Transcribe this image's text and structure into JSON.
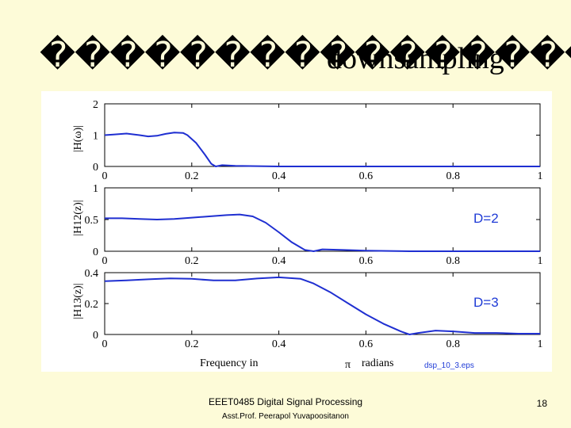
{
  "slide": {
    "title_garbled": "����������������",
    "title_word": "downsampling",
    "footer_course": "EEET0485 Digital Signal Processing",
    "footer_author": "Asst.Prof. Peerapol Yuvapoositanon",
    "page_number": "18",
    "figure_filename": "dsp_10_3.eps"
  },
  "chart_data": [
    {
      "type": "line",
      "panel": "top",
      "ylabel": "|H(ω)|",
      "ylim": [
        0,
        2
      ],
      "yticks": [
        "2",
        "1",
        "0"
      ],
      "xlim": [
        0,
        1
      ],
      "xticks": [
        "0",
        "0.2",
        "0.4",
        "0.6",
        "0.8",
        "1"
      ],
      "x": [
        0,
        0.02,
        0.05,
        0.08,
        0.1,
        0.12,
        0.14,
        0.16,
        0.18,
        0.19,
        0.21,
        0.23,
        0.245,
        0.255,
        0.27,
        0.3,
        0.35,
        0.4,
        0.5,
        0.6,
        0.7,
        0.8,
        0.9,
        1.0
      ],
      "y": [
        1.0,
        1.02,
        1.05,
        1.0,
        0.96,
        0.98,
        1.04,
        1.08,
        1.07,
        1.0,
        0.75,
        0.38,
        0.08,
        0.0,
        0.04,
        0.02,
        0.01,
        0.0,
        0.0,
        0.0,
        0.0,
        0.0,
        0.0,
        0.0
      ]
    },
    {
      "type": "line",
      "panel": "middle",
      "ylabel": "|H12(z)|",
      "ylim": [
        0,
        1
      ],
      "yticks": [
        "1",
        "0.5",
        "0"
      ],
      "xlim": [
        0,
        1
      ],
      "xticks": [
        "0",
        "0.2",
        "0.4",
        "0.6",
        "0.8",
        "1"
      ],
      "annotation": "D=2",
      "x": [
        0,
        0.04,
        0.08,
        0.12,
        0.16,
        0.2,
        0.24,
        0.28,
        0.31,
        0.34,
        0.37,
        0.4,
        0.43,
        0.46,
        0.48,
        0.5,
        0.55,
        0.6,
        0.7,
        0.8,
        0.9,
        1.0
      ],
      "y": [
        0.52,
        0.52,
        0.51,
        0.5,
        0.51,
        0.53,
        0.55,
        0.57,
        0.58,
        0.55,
        0.45,
        0.3,
        0.14,
        0.02,
        0.0,
        0.03,
        0.02,
        0.01,
        0.0,
        0.0,
        0.0,
        0.0
      ]
    },
    {
      "type": "line",
      "panel": "bottom",
      "ylabel": "|H13(z)|",
      "ylim": [
        0,
        0.4
      ],
      "yticks": [
        "0.4",
        "0.2",
        "0"
      ],
      "xlim": [
        0,
        1
      ],
      "xticks": [
        "0",
        "0.2",
        "0.4",
        "0.6",
        "0.8",
        "1"
      ],
      "xlabel_left": "Frequency in",
      "xlabel_pi": "π",
      "xlabel_right": "radians",
      "annotation": "D=3",
      "x": [
        0,
        0.05,
        0.1,
        0.15,
        0.2,
        0.25,
        0.3,
        0.35,
        0.4,
        0.45,
        0.48,
        0.52,
        0.56,
        0.6,
        0.64,
        0.68,
        0.7,
        0.72,
        0.76,
        0.8,
        0.85,
        0.9,
        0.95,
        1.0
      ],
      "y": [
        0.345,
        0.35,
        0.357,
        0.363,
        0.36,
        0.35,
        0.35,
        0.362,
        0.37,
        0.36,
        0.33,
        0.27,
        0.2,
        0.13,
        0.07,
        0.02,
        0.0,
        0.01,
        0.025,
        0.02,
        0.01,
        0.01,
        0.005,
        0.005
      ]
    }
  ]
}
